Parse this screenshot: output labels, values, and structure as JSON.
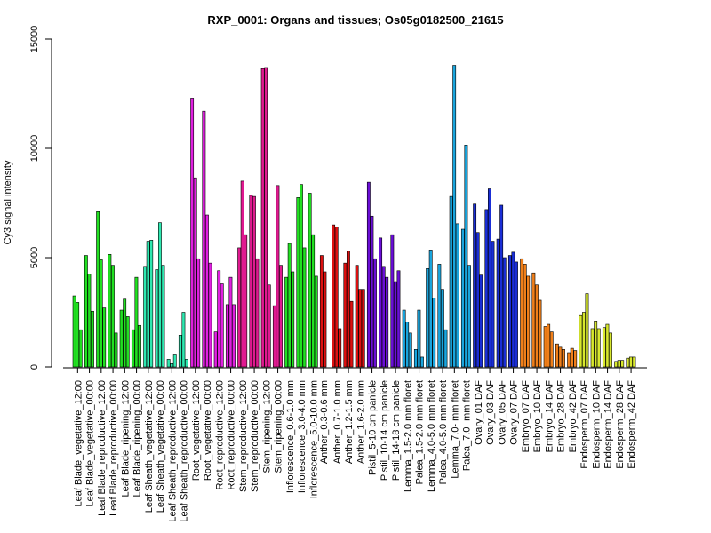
{
  "chart_data": {
    "type": "bar",
    "title": "RXP_0001: Organs and tissues; Os05g0182500_21615",
    "xlabel": "",
    "ylabel": "Cy3 signal intensity",
    "ylim": [
      0,
      15000
    ],
    "yticks": [
      0,
      5000,
      10000,
      15000
    ],
    "grid": false,
    "legend": "none",
    "xtick_labels": [
      "Leaf Blade_vegetative_12:00",
      "Leaf Blade_vegetative_00:00",
      "Leaf Blade_reproductive_12:00",
      "Leaf Blade_reproductive_00:00",
      "Leaf Blade_ripening_12:00",
      "Leaf Blade_ripening_00:00",
      "Leaf Sheath_vegetative_12:00",
      "Leaf Sheath_vegetative_00:00",
      "Leaf Sheath_reproductive_12:00",
      "Leaf Sheath_reproductive_00:00",
      "Root_vegetative_12:00",
      "Root_vegetative_00:00",
      "Root_reproductive_12:00",
      "Root_reproductive_00:00",
      "Stem_reproductive_12:00",
      "Stem_reproductive_00:00",
      "Stem_ripening_12:00",
      "Stem_ripening_00:00",
      "Inflorescence_0.6-1.0 mm",
      "Inflorescence_3.0-4.0 mm",
      "Inflorescence_5.0-10.0 mm",
      "Anther_0.3-0.6 mm",
      "Anther_0.7-1.0 mm",
      "Anther_1.2-1.5 mm",
      "Anther_1.6-2.0 mm",
      "Pistil_5-10 cm panicle",
      "Pistil_10-14 cm panicle",
      "Pistil_14-18 cm panicle",
      "Lemma_1.5-2.0 mm floret",
      "Palea_1.5-2.0 mm floret",
      "Lemma_4.0-5.0 mm floret",
      "Palea_4.0-5.0 mm floret",
      "Lemma_7.0- mm floret",
      "Palea_7.0- mm floret",
      "Ovary_01 DAF",
      "Ovary_03 DAF",
      "Ovary_05 DAF",
      "Ovary_07 DAF",
      "Embryo_07 DAF",
      "Embryo_10 DAF",
      "Embryo_14 DAF",
      "Embryo_28 DAF",
      "Embryo_42 DAF",
      "Endosperm_07 DAF",
      "Endosperm_10 DAF",
      "Endosperm_14 DAF",
      "Endosperm_28 DAF",
      "Endosperm_42 DAF"
    ],
    "groups": [
      {
        "color": "#21e021",
        "values": [
          3250,
          2950,
          1700
        ]
      },
      {
        "color": "#21e021",
        "values": [
          5100,
          4250,
          2550
        ]
      },
      {
        "color": "#21e021",
        "values": [
          7100,
          4900,
          2700
        ]
      },
      {
        "color": "#21e021",
        "values": [
          5150,
          4650,
          1550
        ]
      },
      {
        "color": "#21e021",
        "values": [
          2600,
          3100,
          2300
        ]
      },
      {
        "color": "#21e021",
        "values": [
          1700,
          4100,
          1900
        ]
      },
      {
        "color": "#2ee8b0",
        "values": [
          4600,
          5750,
          5800
        ]
      },
      {
        "color": "#2ee8b0",
        "values": [
          4450,
          6600,
          4650
        ]
      },
      {
        "color": "#2ee8b0",
        "values": [
          350,
          150,
          550
        ]
      },
      {
        "color": "#2ee8b0",
        "values": [
          1450,
          2500,
          350
        ]
      },
      {
        "color": "#e020e0",
        "values": [
          12300,
          8650,
          4950
        ]
      },
      {
        "color": "#e020e0",
        "values": [
          11700,
          6950,
          4750
        ]
      },
      {
        "color": "#e020e0",
        "values": [
          1600,
          4400,
          3800
        ]
      },
      {
        "color": "#e020e0",
        "values": [
          2850,
          4100,
          2850
        ]
      },
      {
        "color": "#e01a90",
        "values": [
          5450,
          8500,
          6050
        ]
      },
      {
        "color": "#e01a90",
        "values": [
          7850,
          7800,
          4950
        ]
      },
      {
        "color": "#e01a90",
        "values": [
          13650,
          13700,
          3750
        ]
      },
      {
        "color": "#e01a90",
        "values": [
          2800,
          8300,
          4650
        ]
      },
      {
        "color": "#22e022",
        "values": [
          4100,
          5650,
          4350
        ]
      },
      {
        "color": "#22e022",
        "values": [
          7750,
          8350,
          5450
        ]
      },
      {
        "color": "#22e022",
        "values": [
          7950,
          6050,
          4150
        ]
      },
      {
        "color": "#dd1111",
        "values": [
          5100,
          4350
        ]
      },
      {
        "color": "#dd1111",
        "values": [
          6500,
          6400,
          1750
        ]
      },
      {
        "color": "#dd1111",
        "values": [
          4750,
          5300,
          3000
        ]
      },
      {
        "color": "#dd1111",
        "values": [
          4650,
          3550,
          3550
        ]
      },
      {
        "color": "#6a0fd6",
        "values": [
          8450,
          6900,
          4950
        ]
      },
      {
        "color": "#6a0fd6",
        "values": [
          5900,
          4600,
          4100
        ]
      },
      {
        "color": "#6a0fd6",
        "values": [
          6050,
          3900,
          4400
        ]
      },
      {
        "color": "#1aa5dd",
        "values": [
          2600,
          2050,
          1550
        ]
      },
      {
        "color": "#1aa5dd",
        "values": [
          800,
          2600,
          450
        ]
      },
      {
        "color": "#1aa5dd",
        "values": [
          4500,
          5350,
          3150
        ]
      },
      {
        "color": "#1aa5dd",
        "values": [
          4700,
          3550,
          1700
        ]
      },
      {
        "color": "#1aa5dd",
        "values": [
          7800,
          13800,
          6550
        ]
      },
      {
        "color": "#1aa5dd",
        "values": [
          6300,
          10150,
          4650
        ]
      },
      {
        "color": "#1a2ed6",
        "values": [
          7450,
          6150,
          4200
        ]
      },
      {
        "color": "#1a2ed6",
        "values": [
          7200,
          8150,
          5750
        ]
      },
      {
        "color": "#1a2ed6",
        "values": [
          5850,
          7400,
          5000
        ]
      },
      {
        "color": "#1a2ed6",
        "values": [
          5100,
          5250,
          4800
        ]
      },
      {
        "color": "#f07f1a",
        "values": [
          4950,
          4700,
          4150
        ]
      },
      {
        "color": "#f07f1a",
        "values": [
          4300,
          3750,
          3050
        ]
      },
      {
        "color": "#f07f1a",
        "values": [
          1850,
          1950,
          1600
        ]
      },
      {
        "color": "#f07f1a",
        "values": [
          1050,
          900,
          800
        ]
      },
      {
        "color": "#f07f1a",
        "values": [
          650,
          850,
          750
        ]
      },
      {
        "color": "#d8e82e",
        "values": [
          2350,
          2500,
          3350
        ]
      },
      {
        "color": "#d8e82e",
        "values": [
          1750,
          2100,
          1750
        ]
      },
      {
        "color": "#d8e82e",
        "values": [
          1800,
          1950,
          1550
        ]
      },
      {
        "color": "#d8e82e",
        "values": [
          250,
          300,
          300
        ]
      },
      {
        "color": "#d8e82e",
        "values": [
          400,
          450,
          450
        ]
      }
    ]
  }
}
